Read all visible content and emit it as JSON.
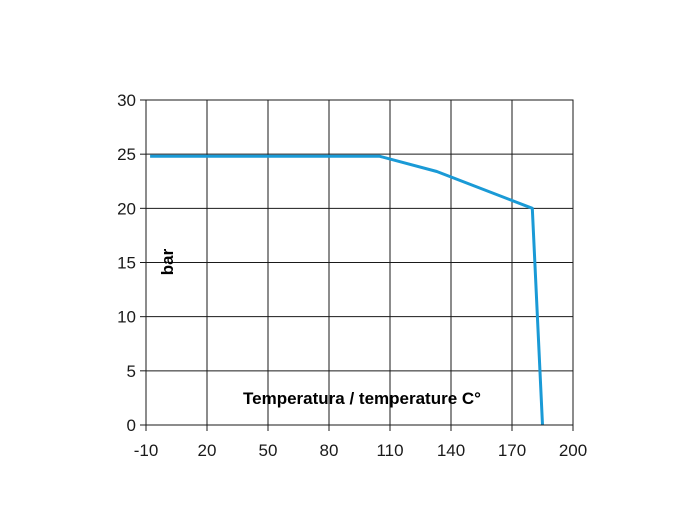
{
  "chart_data": {
    "type": "line",
    "title": "",
    "xlabel": "Temperatura / temperature C°",
    "ylabel": "bar",
    "x_ticks": [
      "-10",
      "20",
      "50",
      "80",
      "110",
      "140",
      "170",
      "200"
    ],
    "y_ticks": [
      "0",
      "5",
      "10",
      "15",
      "20",
      "25",
      "30"
    ],
    "xlim": [
      -10,
      200
    ],
    "ylim": [
      0,
      30
    ],
    "grid": true,
    "legend": "none",
    "series": [
      {
        "color": "#1a9ad6",
        "points": [
          {
            "x": -8,
            "y": 24.8
          },
          {
            "x": 105,
            "y": 24.8
          },
          {
            "x": 133,
            "y": 23.4
          },
          {
            "x": 180,
            "y": 20.0
          },
          {
            "x": 185,
            "y": 0
          }
        ]
      }
    ]
  }
}
